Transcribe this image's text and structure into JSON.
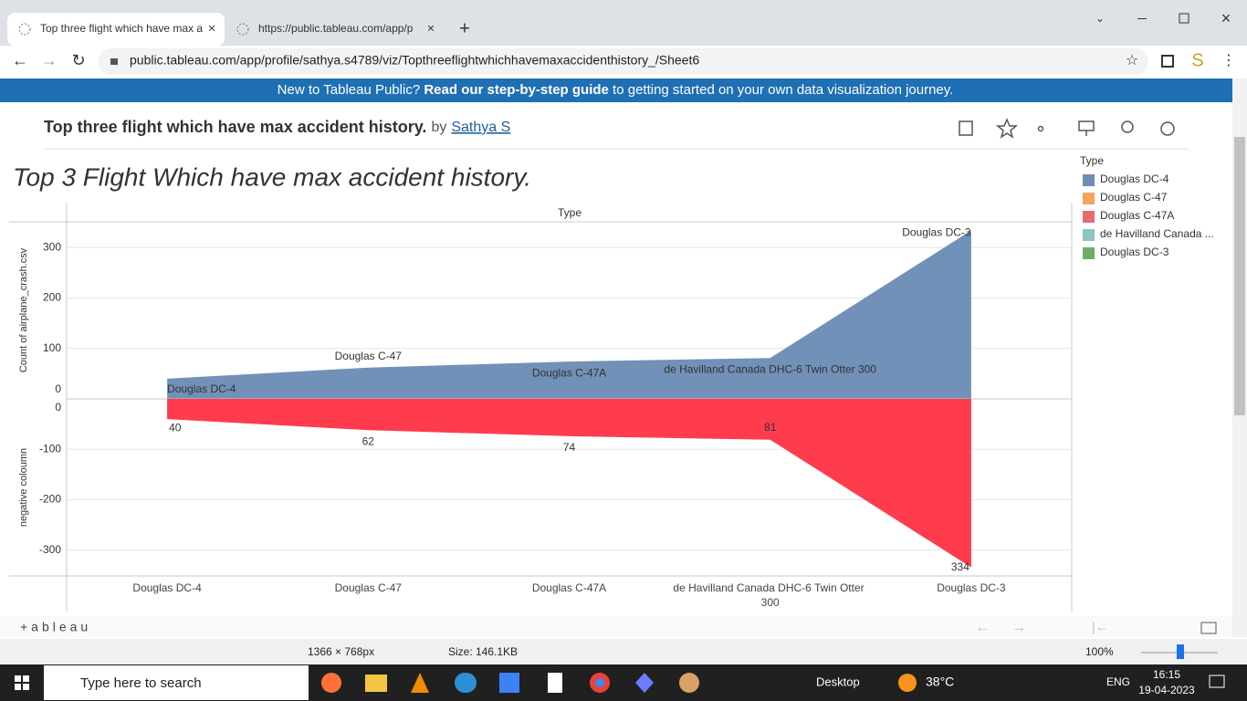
{
  "browser": {
    "tabs": [
      "Top three flight which have max a",
      "https://public.tableau.com/app/p"
    ],
    "url": "public.tableau.com/app/profile/sathya.s4789/viz/Topthreeflightwhichhavemaxaccidenthistory_/Sheet6"
  },
  "banner": {
    "text": "New to Tableau Public?",
    "link": "Read our step-by-step guide",
    "text_end": "to getting started on your own data visualization journey."
  },
  "header": {
    "title": "Top three flight which have max accident history.",
    "by": "by",
    "author": "Sathya S"
  },
  "chart_data": {
    "type": "area",
    "title": "Top 3 Flight Which have max accident history.",
    "column_header": "Type",
    "categories": [
      "Douglas DC-4",
      "Douglas C-47",
      "Douglas C-47A",
      "de Havilland Canada DHC-6 Twin Otter 300",
      "Douglas DC-3"
    ],
    "series": [
      {
        "ylabel": "Count of airplane_crash.csv",
        "color": "#7191b8",
        "values": [
          40,
          62,
          74,
          81,
          334
        ],
        "ylim": [
          0,
          351
        ],
        "yticks": [
          0,
          100,
          200,
          300
        ]
      },
      {
        "ylabel": "negative coloumn",
        "color": "#ff3b4e",
        "values": [
          -40,
          -62,
          -74,
          -81,
          -334
        ],
        "value_labels": [
          "40",
          "62",
          "74",
          "81",
          "334"
        ],
        "ylim": [
          -351,
          0
        ],
        "yticks": [
          0,
          -100,
          -200,
          -300
        ]
      }
    ],
    "grid": true,
    "legend": {
      "title": "Type",
      "items": [
        {
          "label": "Douglas DC-4",
          "color": "#6f8eb6"
        },
        {
          "label": "Douglas C-47",
          "color": "#f7a35c"
        },
        {
          "label": "Douglas C-47A",
          "color": "#e66b6f"
        },
        {
          "label": "de Havilland Canada ...",
          "color": "#8cc5c1"
        },
        {
          "label": "Douglas DC-3",
          "color": "#6fad68"
        }
      ]
    }
  },
  "footer": {
    "logo": "+ableau"
  },
  "status_bar": {
    "dimensions": "1366 × 768px",
    "size": "Size: 146.1KB",
    "zoom": "100%"
  },
  "taskbar": {
    "search": "Type here to search",
    "desktop": "Desktop",
    "weather": "38°C",
    "language": "ENG",
    "time": "16:15",
    "date": "19-04-2023"
  }
}
